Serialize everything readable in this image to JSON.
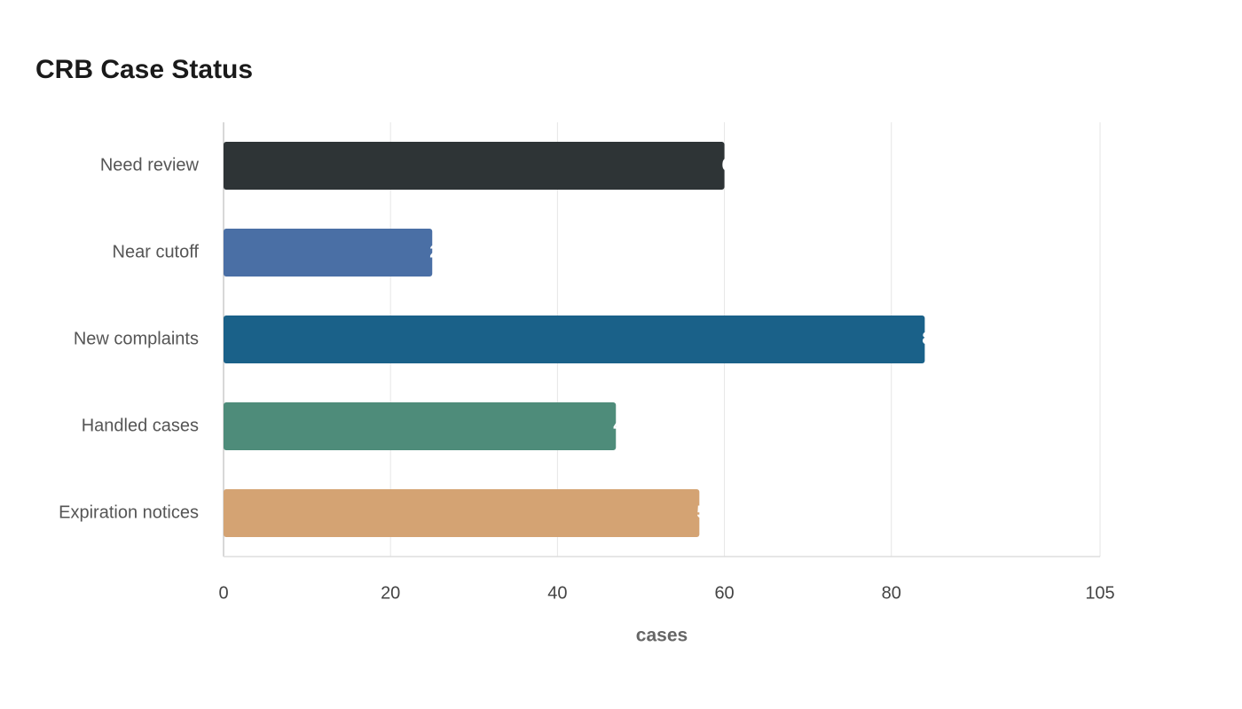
{
  "chart_data": {
    "type": "bar",
    "orientation": "horizontal",
    "title": "CRB Case Status",
    "categories": [
      "Need review",
      "Near cutoff",
      "New complaints",
      "Handled cases",
      "Expiration notices"
    ],
    "values": [
      60,
      25,
      84,
      47,
      57
    ],
    "colors": [
      "#2e3436",
      "#4a6fa5",
      "#1a6189",
      "#4e8c7a",
      "#d4a373"
    ],
    "x_label": "cases",
    "xlim": [
      0,
      105
    ],
    "xticks": [
      0,
      20,
      40,
      60,
      80,
      105
    ],
    "grid": true
  }
}
